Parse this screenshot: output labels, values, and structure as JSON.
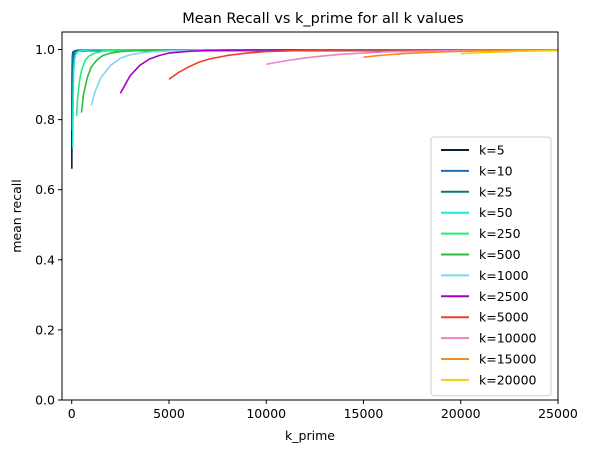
{
  "chart_data": {
    "type": "line",
    "title": "Mean Recall vs k_prime for all k values",
    "xlabel": "k_prime",
    "ylabel": "mean recall",
    "xlim": [
      -500,
      25000
    ],
    "ylim": [
      0.0,
      1.05
    ],
    "xticks": [
      0,
      5000,
      10000,
      15000,
      20000,
      25000
    ],
    "yticks": [
      0.0,
      0.2,
      0.4,
      0.6,
      0.8,
      1.0
    ],
    "grid": false,
    "legend_position": "lower-right",
    "series": [
      {
        "name": "k=5",
        "color": "#0b1f3a",
        "x": [
          5,
          10,
          20,
          40,
          60,
          100,
          150,
          200,
          400,
          800,
          1600,
          3000,
          6000,
          10000,
          15000,
          20000,
          25000
        ],
        "y": [
          0.66,
          0.86,
          0.95,
          0.985,
          0.992,
          0.995,
          0.996,
          0.996,
          0.996,
          0.997,
          0.997,
          0.997,
          0.997,
          0.997,
          0.997,
          0.997,
          0.997
        ]
      },
      {
        "name": "k=10",
        "color": "#1f6fb4",
        "x": [
          10,
          20,
          40,
          60,
          100,
          150,
          200,
          300,
          500,
          1000,
          2000,
          5000,
          10000,
          15000,
          20000,
          25000
        ],
        "y": [
          0.77,
          0.91,
          0.97,
          0.985,
          0.993,
          0.996,
          0.997,
          0.998,
          0.999,
          0.999,
          0.999,
          0.999,
          0.999,
          0.999,
          0.999,
          0.999
        ]
      },
      {
        "name": "k=25",
        "color": "#087880",
        "x": [
          25,
          50,
          75,
          100,
          150,
          200,
          300,
          500,
          1000,
          2000,
          5000,
          10000,
          15000,
          20000,
          25000
        ],
        "y": [
          0.8,
          0.92,
          0.96,
          0.98,
          0.99,
          0.995,
          0.997,
          0.998,
          0.999,
          0.999,
          0.999,
          0.999,
          0.999,
          0.999,
          0.999
        ]
      },
      {
        "name": "k=50",
        "color": "#1ae8e0",
        "x": [
          50,
          75,
          100,
          150,
          200,
          300,
          400,
          600,
          1000,
          2000,
          5000,
          10000,
          15000,
          20000,
          25000
        ],
        "y": [
          0.72,
          0.88,
          0.94,
          0.975,
          0.985,
          0.993,
          0.996,
          0.998,
          0.999,
          0.999,
          0.999,
          0.999,
          0.999,
          0.999,
          0.999
        ]
      },
      {
        "name": "k=250",
        "color": "#1ef07a",
        "x": [
          250,
          300,
          400,
          500,
          700,
          900,
          1200,
          1600,
          2000,
          3000,
          5000,
          10000,
          15000,
          20000,
          25000
        ],
        "y": [
          0.81,
          0.86,
          0.91,
          0.94,
          0.97,
          0.982,
          0.99,
          0.995,
          0.997,
          0.998,
          0.999,
          0.999,
          0.999,
          0.999,
          0.999
        ]
      },
      {
        "name": "k=500",
        "color": "#2dbd3c",
        "x": [
          500,
          600,
          800,
          1000,
          1300,
          1600,
          2000,
          2500,
          3000,
          4000,
          6000,
          10000,
          15000,
          20000,
          25000
        ],
        "y": [
          0.82,
          0.87,
          0.92,
          0.95,
          0.97,
          0.983,
          0.99,
          0.994,
          0.996,
          0.998,
          0.999,
          0.999,
          0.999,
          0.999,
          0.999
        ]
      },
      {
        "name": "k=1000",
        "color": "#7fd8ee",
        "x": [
          1000,
          1200,
          1500,
          2000,
          2500,
          3000,
          3500,
          4000,
          5000,
          7000,
          10000,
          15000,
          20000,
          25000
        ],
        "y": [
          0.84,
          0.88,
          0.92,
          0.955,
          0.975,
          0.985,
          0.99,
          0.993,
          0.996,
          0.998,
          0.999,
          0.999,
          0.999,
          0.999
        ]
      },
      {
        "name": "k=2500",
        "color": "#a600c8",
        "x": [
          2500,
          2750,
          3000,
          3500,
          4000,
          4500,
          5000,
          6000,
          7000,
          8000,
          10000,
          15000,
          20000,
          25000
        ],
        "y": [
          0.875,
          0.9,
          0.925,
          0.955,
          0.973,
          0.983,
          0.99,
          0.995,
          0.997,
          0.998,
          0.999,
          0.999,
          0.999,
          0.999
        ]
      },
      {
        "name": "k=5000",
        "color": "#f0402a",
        "x": [
          5000,
          5500,
          6000,
          6500,
          7000,
          8000,
          9000,
          10000,
          11000,
          12500,
          15000,
          20000,
          25000
        ],
        "y": [
          0.915,
          0.935,
          0.95,
          0.963,
          0.972,
          0.983,
          0.99,
          0.994,
          0.996,
          0.998,
          0.999,
          0.999,
          0.999
        ]
      },
      {
        "name": "k=10000",
        "color": "#f080c8",
        "x": [
          10000,
          11000,
          12000,
          13000,
          14000,
          15000,
          16000,
          17500,
          20000,
          22500,
          25000
        ],
        "y": [
          0.958,
          0.968,
          0.976,
          0.982,
          0.987,
          0.99,
          0.993,
          0.995,
          0.997,
          0.998,
          0.999
        ]
      },
      {
        "name": "k=15000",
        "color": "#f58a1f",
        "x": [
          15000,
          16000,
          17000,
          18000,
          19000,
          20000,
          21000,
          22500,
          25000
        ],
        "y": [
          0.978,
          0.984,
          0.988,
          0.991,
          0.993,
          0.995,
          0.996,
          0.997,
          0.998
        ]
      },
      {
        "name": "k=20000",
        "color": "#f5d000",
        "x": [
          20000,
          21000,
          22000,
          23000,
          24000,
          25000
        ],
        "y": [
          0.988,
          0.991,
          0.993,
          0.995,
          0.996,
          0.997
        ]
      }
    ]
  }
}
